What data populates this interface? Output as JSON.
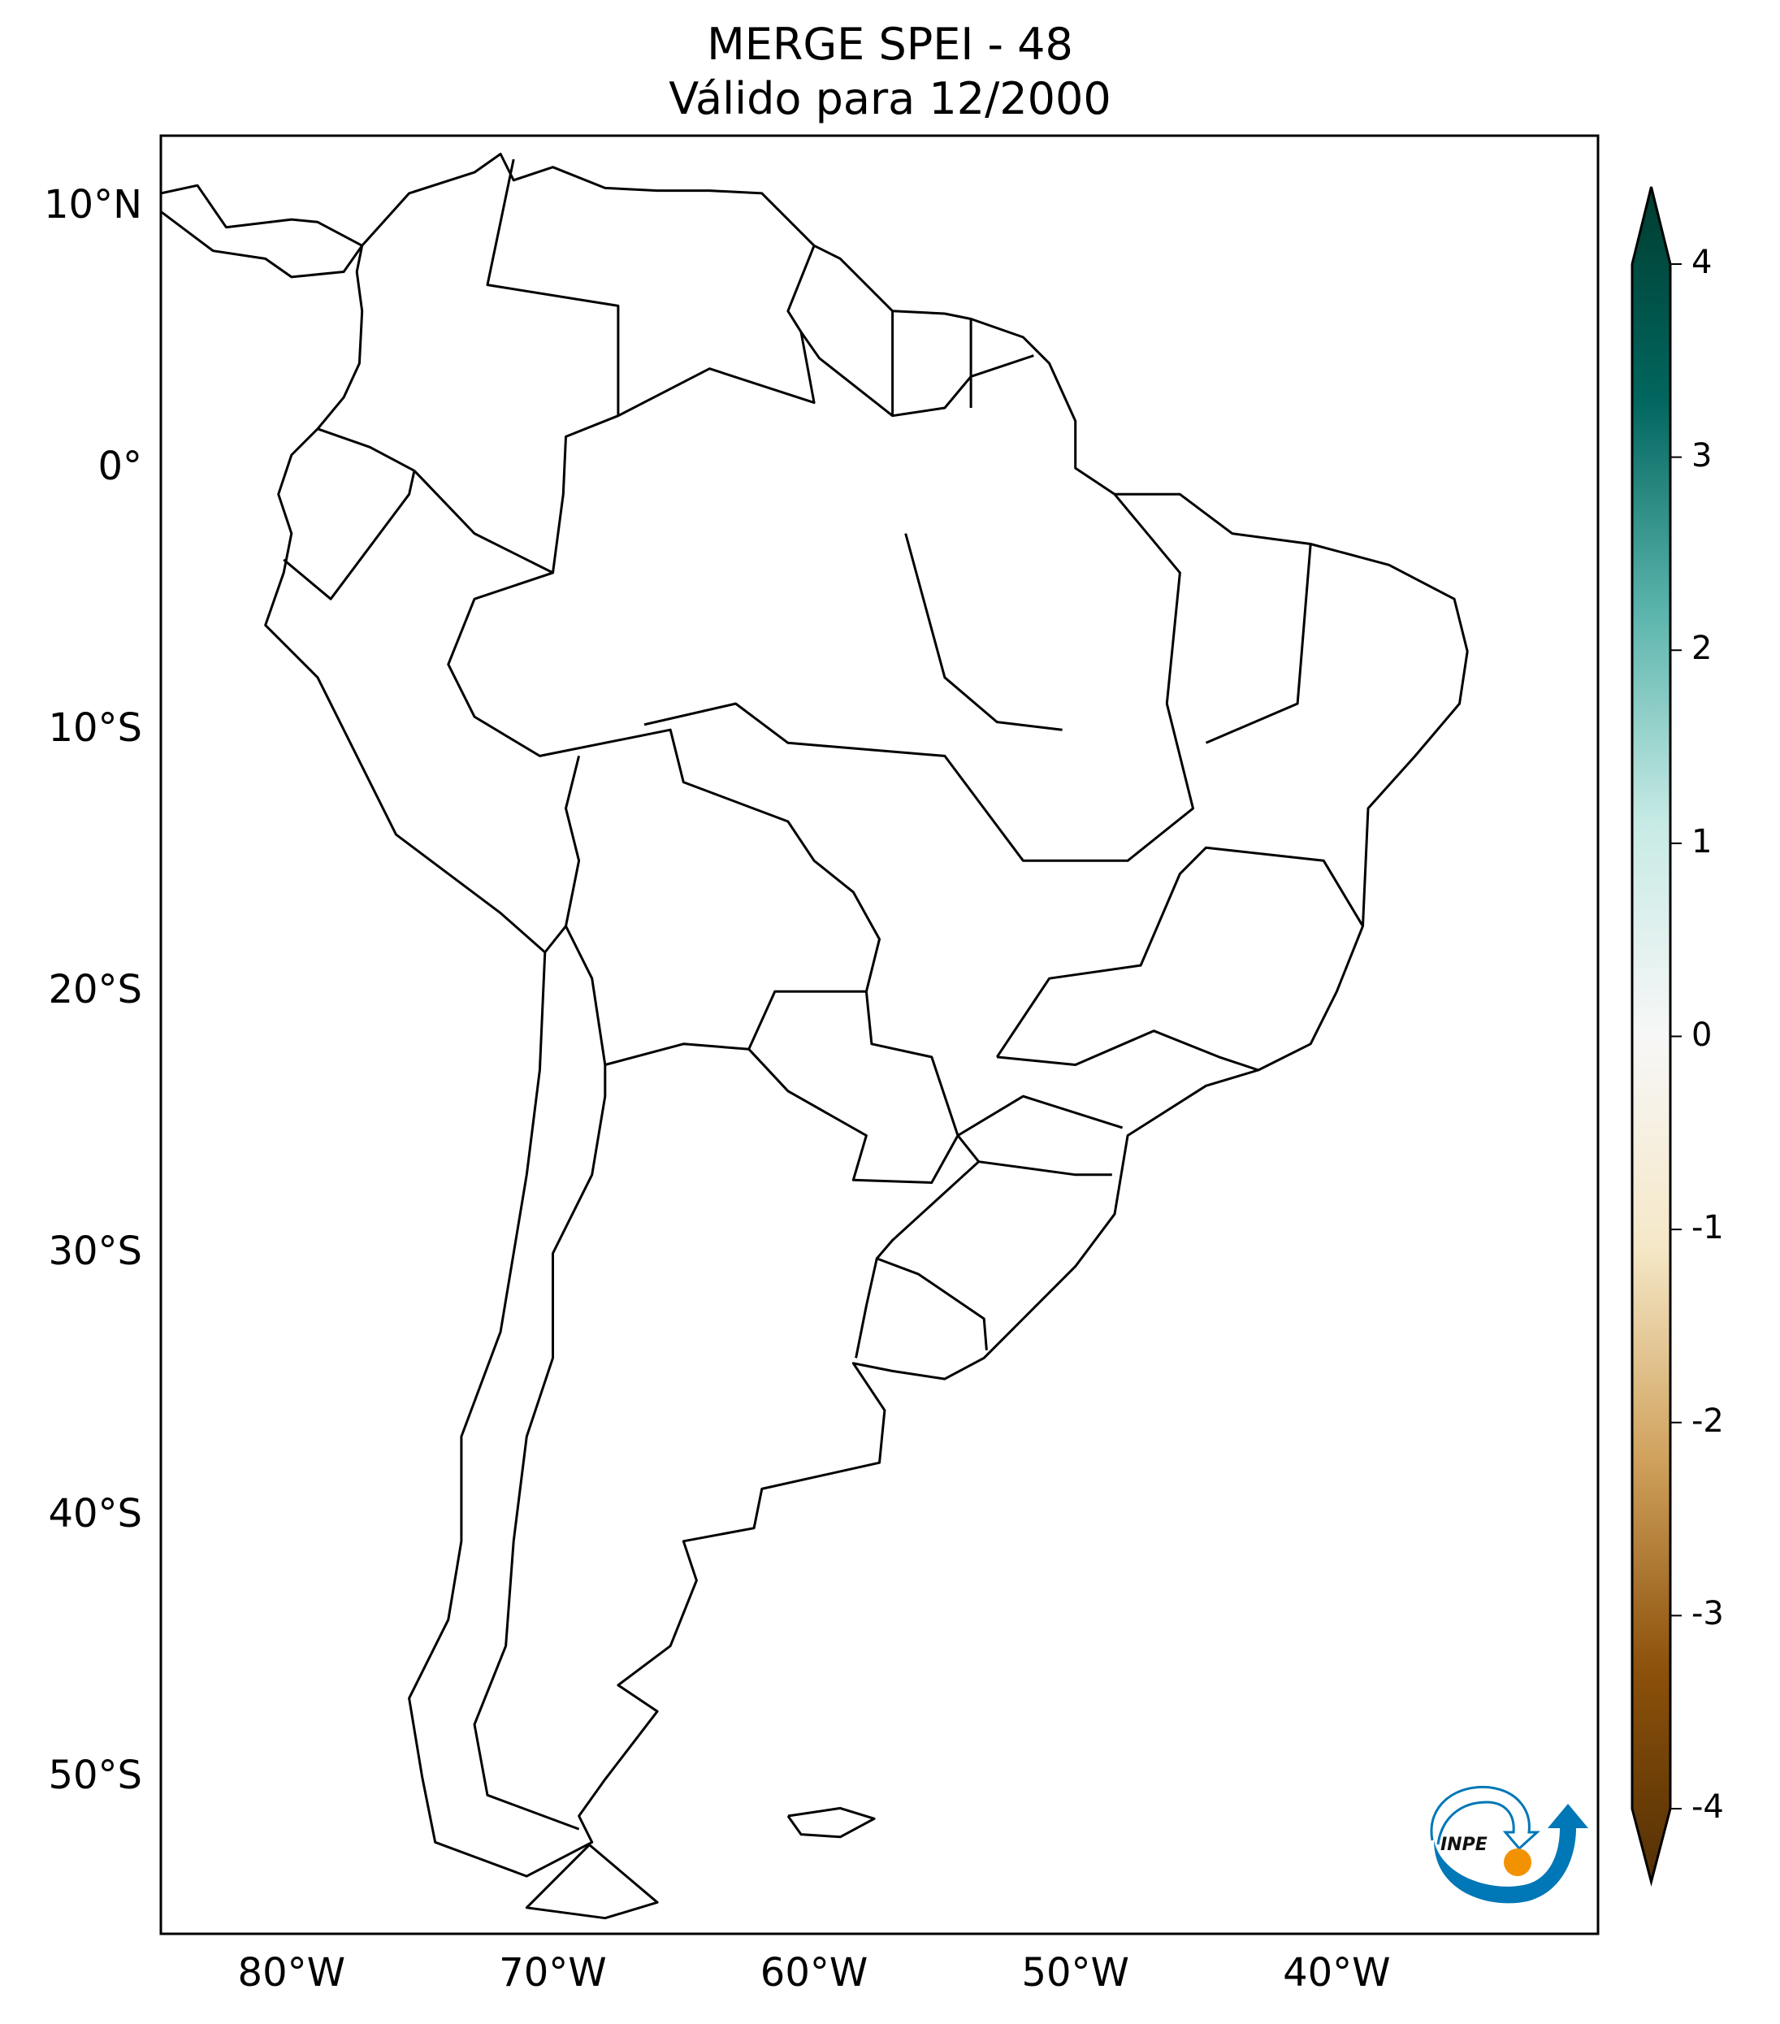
{
  "title": {
    "line1": "MERGE   SPEI - 48",
    "line2": "Válido para 12/2000"
  },
  "map": {
    "projection": "plate-carree",
    "extent": {
      "lon": [
        -85,
        -30
      ],
      "lat": [
        -56,
        12.7
      ]
    },
    "lon_ticks": [
      {
        "value": -80,
        "label": "80°W"
      },
      {
        "value": -70,
        "label": "70°W"
      },
      {
        "value": -60,
        "label": "60°W"
      },
      {
        "value": -50,
        "label": "50°W"
      },
      {
        "value": -40,
        "label": "40°W"
      }
    ],
    "lat_ticks": [
      {
        "value": 10,
        "label": "10°N"
      },
      {
        "value": 0,
        "label": "0°"
      },
      {
        "value": -10,
        "label": "10°S"
      },
      {
        "value": -20,
        "label": "20°S"
      },
      {
        "value": -30,
        "label": "30°S"
      },
      {
        "value": -40,
        "label": "40°S"
      },
      {
        "value": -50,
        "label": "50°S"
      }
    ],
    "field": "SPEI-48 (all values near 0, map blank)"
  },
  "colorbar": {
    "colormap": "BrBG",
    "range": [
      -4,
      4
    ],
    "extend": "both",
    "ticks": [
      "4",
      "3",
      "2",
      "1",
      "0",
      "-1",
      "-2",
      "-3",
      "-4"
    ],
    "colors": [
      "#543005",
      "#8c510a",
      "#d0a25d",
      "#f5e8c8",
      "#f7f7f7",
      "#c7eae5",
      "#5ab4ac",
      "#01665e",
      "#003c30"
    ]
  },
  "logo": {
    "text": "INPE",
    "blue": "#0077b6",
    "orange": "#f29200"
  }
}
